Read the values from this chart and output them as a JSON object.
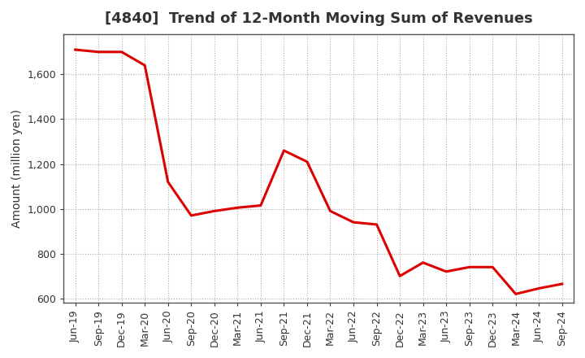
{
  "title": "[4840]  Trend of 12-Month Moving Sum of Revenues",
  "ylabel": "Amount (million yen)",
  "line_color": "#dd0000",
  "background_color": "#ffffff",
  "grid_color": "#aaaaaa",
  "border_color": "#555555",
  "x_labels": [
    "Jun-19",
    "Sep-19",
    "Dec-19",
    "Mar-20",
    "Jun-20",
    "Sep-20",
    "Dec-20",
    "Mar-21",
    "Jun-21",
    "Sep-21",
    "Dec-21",
    "Mar-22",
    "Jun-22",
    "Sep-22",
    "Dec-22",
    "Mar-23",
    "Jun-23",
    "Sep-23",
    "Dec-23",
    "Mar-24",
    "Jun-24",
    "Sep-24"
  ],
  "values": [
    1710,
    1700,
    1700,
    1640,
    1120,
    970,
    990,
    1005,
    1015,
    1260,
    1210,
    990,
    940,
    930,
    700,
    760,
    720,
    740,
    740,
    620,
    645,
    665
  ],
  "ylim": [
    580,
    1780
  ],
  "yticks": [
    600,
    800,
    1000,
    1200,
    1400,
    1600
  ],
  "title_fontsize": 13,
  "axis_fontsize": 10,
  "tick_fontsize": 9,
  "linewidth": 2.2
}
